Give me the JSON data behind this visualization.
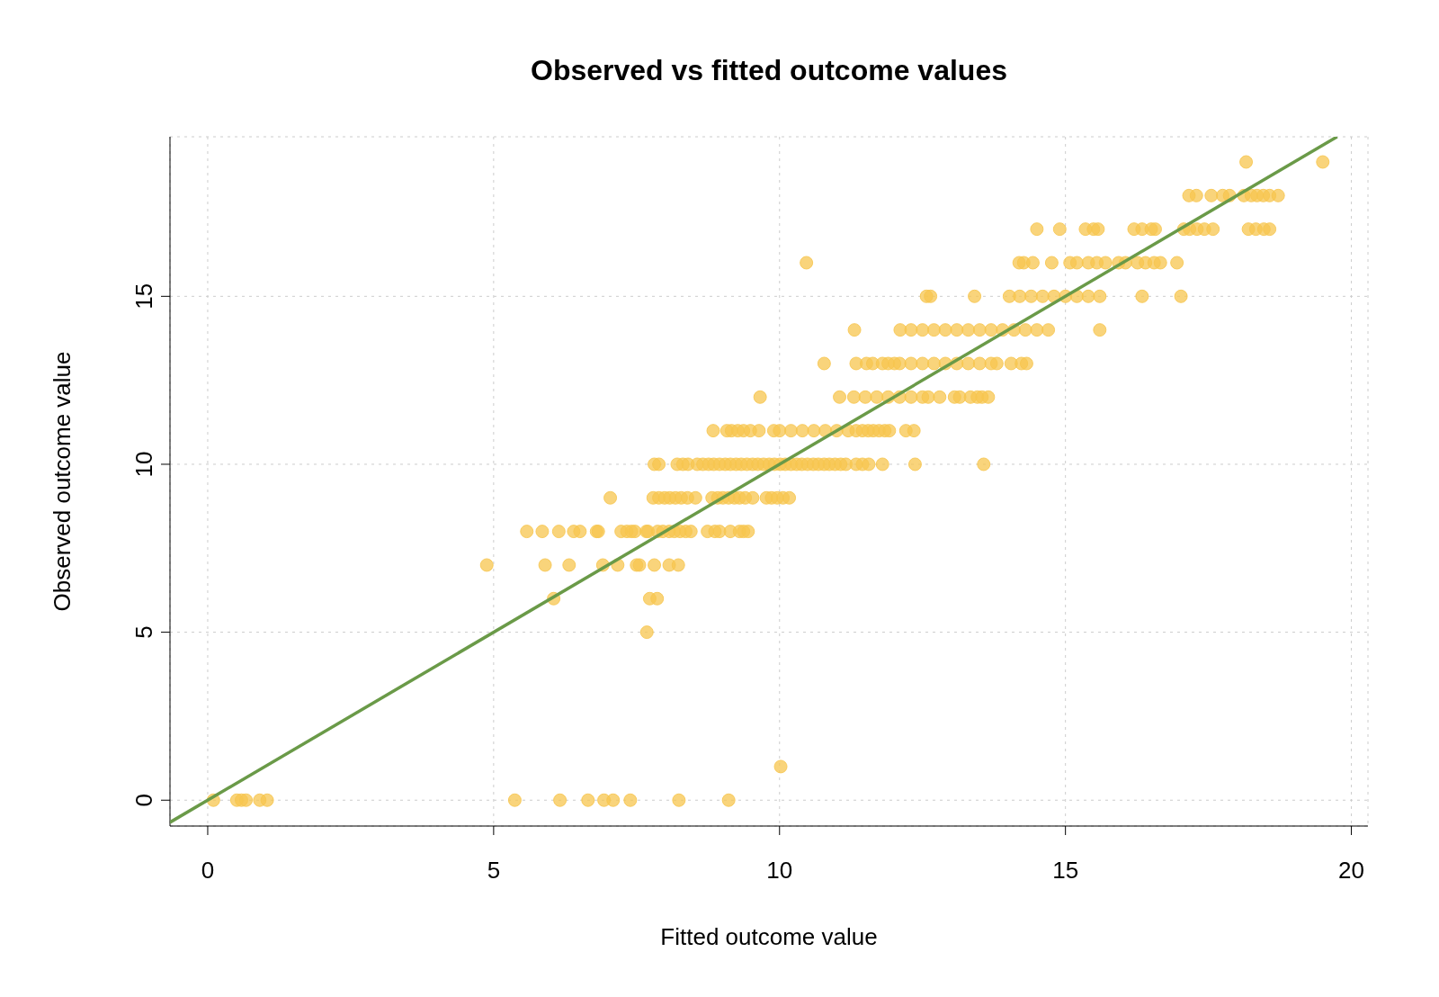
{
  "chart_data": {
    "type": "scatter",
    "title": "Observed vs fitted outcome values",
    "xlabel": "Fitted outcome value",
    "ylabel": "Observed outcome value",
    "xlim": [
      -0.66,
      20.29
    ],
    "ylim": [
      -0.77,
      19.75
    ],
    "xticks": [
      0,
      5,
      10,
      15,
      20
    ],
    "yticks": [
      0,
      5,
      10,
      15
    ],
    "grid": true,
    "marker": "circle",
    "series": [
      {
        "color": "#f7c54f",
        "x": [
          0.1,
          0.51,
          0.59,
          0.67,
          0.91,
          1.04,
          5.37,
          6.16,
          6.65,
          6.93,
          7.09,
          7.39,
          8.24,
          9.11,
          10.02,
          7.68,
          6.05,
          7.73,
          7.86,
          4.88,
          5.9,
          6.32,
          6.91,
          7.17,
          7.5,
          7.55,
          7.81,
          8.07,
          8.23,
          5.58,
          5.85,
          6.14,
          6.4,
          6.51,
          6.8,
          6.83,
          7.23,
          7.33,
          7.41,
          7.47,
          7.67,
          7.7,
          7.87,
          7.96,
          8.07,
          8.16,
          8.26,
          8.36,
          8.45,
          8.74,
          8.87,
          8.95,
          9.14,
          9.3,
          9.37,
          9.45,
          7.04,
          7.79,
          7.89,
          7.99,
          8.08,
          8.18,
          8.28,
          8.39,
          8.53,
          8.82,
          8.92,
          9.01,
          9.11,
          9.21,
          9.3,
          9.4,
          9.53,
          9.77,
          9.86,
          9.96,
          10.06,
          10.17,
          7.81,
          7.89,
          8.21,
          8.31,
          8.4,
          8.56,
          8.66,
          8.76,
          8.85,
          8.95,
          9.05,
          9.14,
          9.24,
          9.33,
          9.43,
          9.53,
          9.62,
          9.72,
          9.82,
          9.91,
          10.01,
          10.1,
          10.2,
          10.3,
          10.39,
          10.49,
          10.59,
          10.68,
          10.78,
          10.87,
          10.97,
          11.07,
          11.16,
          11.34,
          11.45,
          11.56,
          11.8,
          12.37,
          13.57,
          8.84,
          9.08,
          9.16,
          9.27,
          9.37,
          9.49,
          9.64,
          9.9,
          10.0,
          10.2,
          10.4,
          10.6,
          10.8,
          11.0,
          11.2,
          11.34,
          11.45,
          11.55,
          11.64,
          11.74,
          11.84,
          11.92,
          12.21,
          12.35,
          9.66,
          11.05,
          11.3,
          11.5,
          11.7,
          11.9,
          12.1,
          12.3,
          12.5,
          12.6,
          12.8,
          13.06,
          13.15,
          13.34,
          13.46,
          13.54,
          13.65,
          10.78,
          11.34,
          11.52,
          11.63,
          11.8,
          11.9,
          12.01,
          12.1,
          12.3,
          12.5,
          12.7,
          12.9,
          13.1,
          13.3,
          13.5,
          13.7,
          13.8,
          14.05,
          14.23,
          14.32,
          11.31,
          12.11,
          12.3,
          12.5,
          12.7,
          12.9,
          13.1,
          13.3,
          13.5,
          13.7,
          13.9,
          14.1,
          14.3,
          14.5,
          14.7,
          15.6,
          12.57,
          12.64,
          13.41,
          14.02,
          14.2,
          14.4,
          14.6,
          14.8,
          15.0,
          15.2,
          15.4,
          15.6,
          16.34,
          17.02,
          10.47,
          14.19,
          14.27,
          14.43,
          14.76,
          15.08,
          15.2,
          15.4,
          15.55,
          15.7,
          15.93,
          16.05,
          16.26,
          16.4,
          16.55,
          16.66,
          16.95,
          14.5,
          14.9,
          15.35,
          15.49,
          15.57,
          16.2,
          16.34,
          16.5,
          16.57,
          17.07,
          17.17,
          17.3,
          17.43,
          17.58,
          18.2,
          18.33,
          18.47,
          18.57,
          17.16,
          17.29,
          17.55,
          17.75,
          17.87,
          18.12,
          18.25,
          18.35,
          18.46,
          18.57,
          18.72,
          18.16,
          19.5
        ],
        "values": [
          0,
          0,
          0,
          0,
          0,
          0,
          0,
          0,
          0,
          0,
          0,
          0,
          0,
          0,
          1,
          5,
          6,
          6,
          6,
          7,
          7,
          7,
          7,
          7,
          7,
          7,
          7,
          7,
          7,
          8,
          8,
          8,
          8,
          8,
          8,
          8,
          8,
          8,
          8,
          8,
          8,
          8,
          8,
          8,
          8,
          8,
          8,
          8,
          8,
          8,
          8,
          8,
          8,
          8,
          8,
          8,
          9,
          9,
          9,
          9,
          9,
          9,
          9,
          9,
          9,
          9,
          9,
          9,
          9,
          9,
          9,
          9,
          9,
          9,
          9,
          9,
          9,
          9,
          10,
          10,
          10,
          10,
          10,
          10,
          10,
          10,
          10,
          10,
          10,
          10,
          10,
          10,
          10,
          10,
          10,
          10,
          10,
          10,
          10,
          10,
          10,
          10,
          10,
          10,
          10,
          10,
          10,
          10,
          10,
          10,
          10,
          10,
          10,
          10,
          10,
          10,
          10,
          11,
          11,
          11,
          11,
          11,
          11,
          11,
          11,
          11,
          11,
          11,
          11,
          11,
          11,
          11,
          11,
          11,
          11,
          11,
          11,
          11,
          11,
          11,
          11,
          12,
          12,
          12,
          12,
          12,
          12,
          12,
          12,
          12,
          12,
          12,
          12,
          12,
          12,
          12,
          12,
          12,
          13,
          13,
          13,
          13,
          13,
          13,
          13,
          13,
          13,
          13,
          13,
          13,
          13,
          13,
          13,
          13,
          13,
          13,
          13,
          13,
          14,
          14,
          14,
          14,
          14,
          14,
          14,
          14,
          14,
          14,
          14,
          14,
          14,
          14,
          14,
          14,
          15,
          15,
          15,
          15,
          15,
          15,
          15,
          15,
          15,
          15,
          15,
          15,
          15,
          15,
          16,
          16,
          16,
          16,
          16,
          16,
          16,
          16,
          16,
          16,
          16,
          16,
          16,
          16,
          16,
          16,
          16,
          17,
          17,
          17,
          17,
          17,
          17,
          17,
          17,
          17,
          17,
          17,
          17,
          17,
          17,
          17,
          17,
          17,
          17,
          18,
          18,
          18,
          18,
          18,
          18,
          18,
          18,
          18,
          18,
          18,
          19,
          19
        ]
      },
      {
        "type": "line",
        "color": "#6a9a48",
        "marker": "none",
        "line_style": "solid",
        "x": [
          -0.66,
          19.75
        ],
        "values": [
          -0.66,
          19.75
        ]
      }
    ]
  }
}
